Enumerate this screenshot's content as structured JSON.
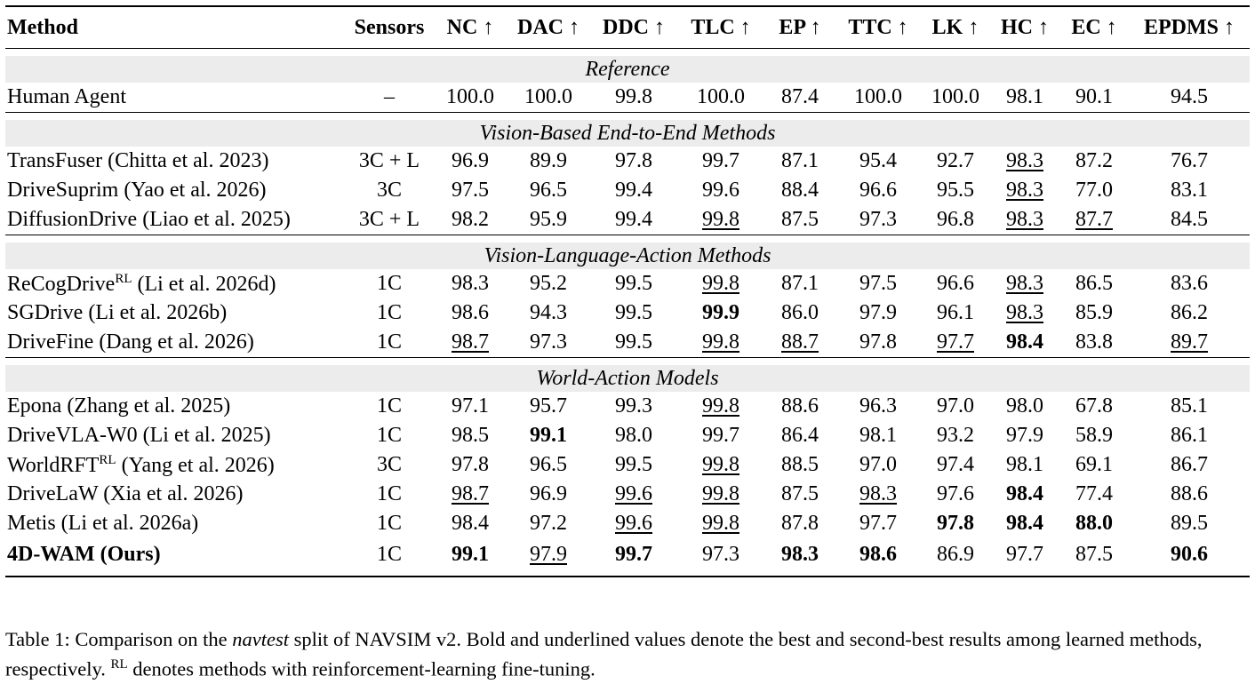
{
  "header": {
    "method": "Method",
    "sensors": "Sensors",
    "cols": [
      "NC ↑",
      "DAC ↑",
      "DDC ↑",
      "TLC ↑",
      "EP ↑",
      "TTC ↑",
      "LK ↑",
      "HC ↑",
      "EC ↑",
      "EPDMS ↑"
    ]
  },
  "sections": [
    {
      "title": "Reference",
      "rows": [
        {
          "method": "Human Agent",
          "sup": "",
          "cite": "",
          "sensors": "–",
          "vals": [
            "100.0",
            "100.0",
            "99.8",
            "100.0",
            "87.4",
            "100.0",
            "100.0",
            "98.1",
            "90.1",
            "94.5"
          ],
          "fmt": [
            "",
            "",
            "",
            "",
            "",
            "",
            "",
            "",
            "",
            ""
          ]
        }
      ]
    },
    {
      "title": "Vision-Based End-to-End Methods",
      "rows": [
        {
          "method": "TransFuser",
          "sup": "",
          "cite": " (Chitta et al. 2023)",
          "sensors": "3C + L",
          "vals": [
            "96.9",
            "89.9",
            "97.8",
            "99.7",
            "87.1",
            "95.4",
            "92.7",
            "98.3",
            "87.2",
            "76.7"
          ],
          "fmt": [
            "",
            "",
            "",
            "",
            "",
            "",
            "",
            "u",
            "",
            ""
          ]
        },
        {
          "method": "DriveSuprim",
          "sup": "",
          "cite": " (Yao et al. 2026)",
          "sensors": "3C",
          "vals": [
            "97.5",
            "96.5",
            "99.4",
            "99.6",
            "88.4",
            "96.6",
            "95.5",
            "98.3",
            "77.0",
            "83.1"
          ],
          "fmt": [
            "",
            "",
            "",
            "",
            "",
            "",
            "",
            "u",
            "",
            ""
          ]
        },
        {
          "method": "DiffusionDrive",
          "sup": "",
          "cite": " (Liao et al. 2025)",
          "sensors": "3C + L",
          "vals": [
            "98.2",
            "95.9",
            "99.4",
            "99.8",
            "87.5",
            "97.3",
            "96.8",
            "98.3",
            "87.7",
            "84.5"
          ],
          "fmt": [
            "",
            "",
            "",
            "u",
            "",
            "",
            "",
            "u",
            "u",
            ""
          ]
        }
      ]
    },
    {
      "title": "Vision-Language-Action Methods",
      "rows": [
        {
          "method": "ReCogDrive",
          "sup": "RL",
          "cite": " (Li et al. 2026d)",
          "sensors": "1C",
          "vals": [
            "98.3",
            "95.2",
            "99.5",
            "99.8",
            "87.1",
            "97.5",
            "96.6",
            "98.3",
            "86.5",
            "83.6"
          ],
          "fmt": [
            "",
            "",
            "",
            "u",
            "",
            "",
            "",
            "u",
            "",
            ""
          ]
        },
        {
          "method": "SGDrive",
          "sup": "",
          "cite": " (Li et al. 2026b)",
          "sensors": "1C",
          "vals": [
            "98.6",
            "94.3",
            "99.5",
            "99.9",
            "86.0",
            "97.9",
            "96.1",
            "98.3",
            "85.9",
            "86.2"
          ],
          "fmt": [
            "",
            "",
            "",
            "b",
            "",
            "",
            "",
            "u",
            "",
            ""
          ]
        },
        {
          "method": "DriveFine",
          "sup": "",
          "cite": " (Dang et al. 2026)",
          "sensors": "1C",
          "vals": [
            "98.7",
            "97.3",
            "99.5",
            "99.8",
            "88.7",
            "97.8",
            "97.7",
            "98.4",
            "83.8",
            "89.7"
          ],
          "fmt": [
            "u",
            "",
            "",
            "u",
            "u",
            "",
            "u",
            "b",
            "",
            "u"
          ]
        }
      ]
    },
    {
      "title": "World-Action Models",
      "rows": [
        {
          "method": "Epona",
          "sup": "",
          "cite": " (Zhang et al. 2025)",
          "sensors": "1C",
          "vals": [
            "97.1",
            "95.7",
            "99.3",
            "99.8",
            "88.6",
            "96.3",
            "97.0",
            "98.0",
            "67.8",
            "85.1"
          ],
          "fmt": [
            "",
            "",
            "",
            "u",
            "",
            "",
            "",
            "",
            "",
            ""
          ]
        },
        {
          "method": "DriveVLA-W0",
          "sup": "",
          "cite": " (Li et al. 2025)",
          "sensors": "1C",
          "vals": [
            "98.5",
            "99.1",
            "98.0",
            "99.7",
            "86.4",
            "98.1",
            "93.2",
            "97.9",
            "58.9",
            "86.1"
          ],
          "fmt": [
            "",
            "b",
            "",
            "",
            "",
            "",
            "",
            "",
            "",
            ""
          ]
        },
        {
          "method": "WorldRFT",
          "sup": "RL",
          "cite": " (Yang et al. 2026)",
          "sensors": "3C",
          "vals": [
            "97.8",
            "96.5",
            "99.5",
            "99.8",
            "88.5",
            "97.0",
            "97.4",
            "98.1",
            "69.1",
            "86.7"
          ],
          "fmt": [
            "",
            "",
            "",
            "u",
            "",
            "",
            "",
            "",
            "",
            ""
          ]
        },
        {
          "method": "DriveLaW",
          "sup": "",
          "cite": " (Xia et al. 2026)",
          "sensors": "1C",
          "vals": [
            "98.7",
            "96.9",
            "99.6",
            "99.8",
            "87.5",
            "98.3",
            "97.6",
            "98.4",
            "77.4",
            "88.6"
          ],
          "fmt": [
            "u",
            "",
            "u",
            "u",
            "",
            "u",
            "",
            "b",
            "",
            ""
          ]
        },
        {
          "method": "Metis",
          "sup": "",
          "cite": " (Li et al. 2026a)",
          "sensors": "1C",
          "vals": [
            "98.4",
            "97.2",
            "99.6",
            "99.8",
            "87.8",
            "97.7",
            "97.8",
            "98.4",
            "88.0",
            "89.5"
          ],
          "fmt": [
            "",
            "",
            "u",
            "u",
            "",
            "",
            "b",
            "b",
            "b",
            ""
          ]
        },
        {
          "method": "4D-WAM (Ours)",
          "sup": "",
          "cite": "",
          "sensors": "1C",
          "bold_name": true,
          "vals": [
            "99.1",
            "97.9",
            "99.7",
            "97.3",
            "98.3",
            "98.6",
            "86.9",
            "97.7",
            "87.5",
            "90.6"
          ],
          "fmt": [
            "b",
            "u",
            "b",
            "",
            "b",
            "b",
            "",
            "",
            "",
            "b"
          ]
        }
      ]
    }
  ],
  "caption": {
    "pre": "Table 1: Comparison on the ",
    "em": "navtest",
    "mid": " split of NAVSIM v2. Bold and underlined values denote the best and second-best results among learned methods, respectively. ",
    "sup": "RL",
    "post": " denotes methods with reinforcement-learning fine-tuning."
  }
}
